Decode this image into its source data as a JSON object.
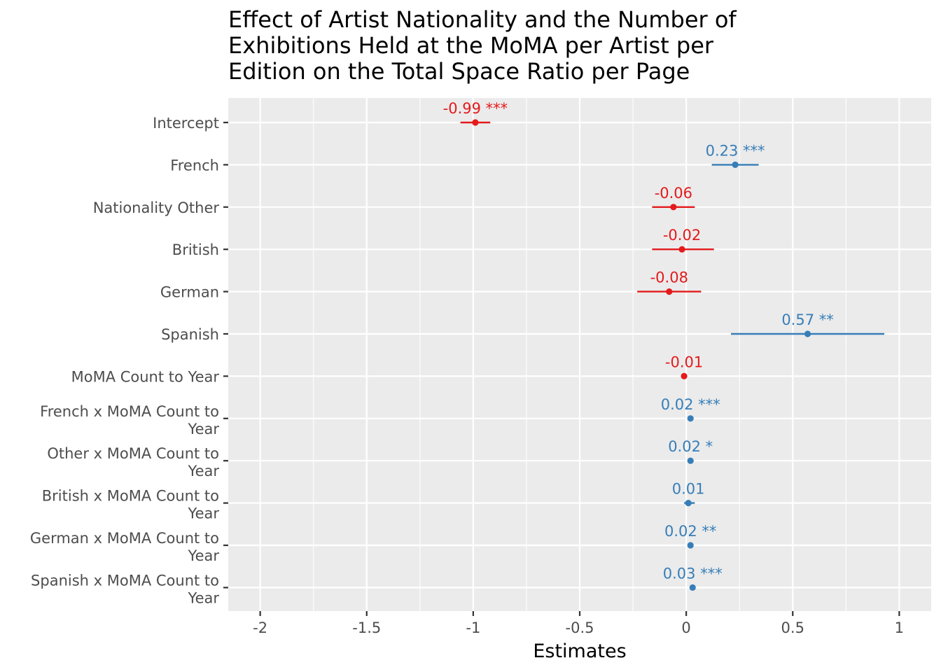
{
  "chart_data": {
    "type": "scatter",
    "subtype": "coefficient-plot",
    "title": "Effect of Artist Nationality and the Number of\nExhibitions Held at the MoMA per Artist per\nEdition on the Total Space Ratio per Page",
    "xlabel": "Estimates",
    "ylabel": "",
    "xlim": [
      -2.15,
      1.15
    ],
    "x_ticks": [
      -2,
      -1.5,
      -1,
      -0.5,
      0,
      0.5,
      1
    ],
    "x_tick_labels": [
      "-2",
      "-1.5",
      "-1",
      "-0.5",
      "0",
      "0.5",
      "1"
    ],
    "grid": true,
    "legend": "none",
    "colors": {
      "negative": "#e41a1c",
      "positive": "#377eb8",
      "panel": "#ebebeb",
      "grid": "#ffffff"
    },
    "terms": [
      {
        "label": "Intercept",
        "estimate": -0.99,
        "ci": [
          -1.06,
          -0.92
        ],
        "text": "-0.99 ***"
      },
      {
        "label": "French",
        "estimate": 0.23,
        "ci": [
          0.12,
          0.34
        ],
        "text": "0.23 ***"
      },
      {
        "label": "Nationality Other",
        "estimate": -0.06,
        "ci": [
          -0.16,
          0.04
        ],
        "text": "-0.06"
      },
      {
        "label": "British",
        "estimate": -0.02,
        "ci": [
          -0.16,
          0.13
        ],
        "text": "-0.02"
      },
      {
        "label": "German",
        "estimate": -0.08,
        "ci": [
          -0.23,
          0.07
        ],
        "text": "-0.08"
      },
      {
        "label": "Spanish",
        "estimate": 0.57,
        "ci": [
          0.21,
          0.93
        ],
        "text": "0.57 **"
      },
      {
        "label": "MoMA Count to Year",
        "estimate": -0.01,
        "ci": [
          -0.01,
          -0.01
        ],
        "text": "-0.01"
      },
      {
        "label": "French x MoMA Count to\nYear",
        "estimate": 0.02,
        "ci": [
          0.02,
          0.02
        ],
        "text": "0.02 ***"
      },
      {
        "label": "Other x MoMA Count to\nYear",
        "estimate": 0.02,
        "ci": [
          0.015,
          0.025
        ],
        "text": "0.02 *"
      },
      {
        "label": "British x MoMA Count to\nYear",
        "estimate": 0.01,
        "ci": [
          -0.01,
          0.04
        ],
        "text": "0.01"
      },
      {
        "label": "German x MoMA Count to\nYear",
        "estimate": 0.02,
        "ci": [
          0.015,
          0.025
        ],
        "text": "0.02 **"
      },
      {
        "label": "Spanish x MoMA Count to\nYear",
        "estimate": 0.03,
        "ci": [
          0.025,
          0.035
        ],
        "text": "0.03 ***"
      }
    ]
  }
}
